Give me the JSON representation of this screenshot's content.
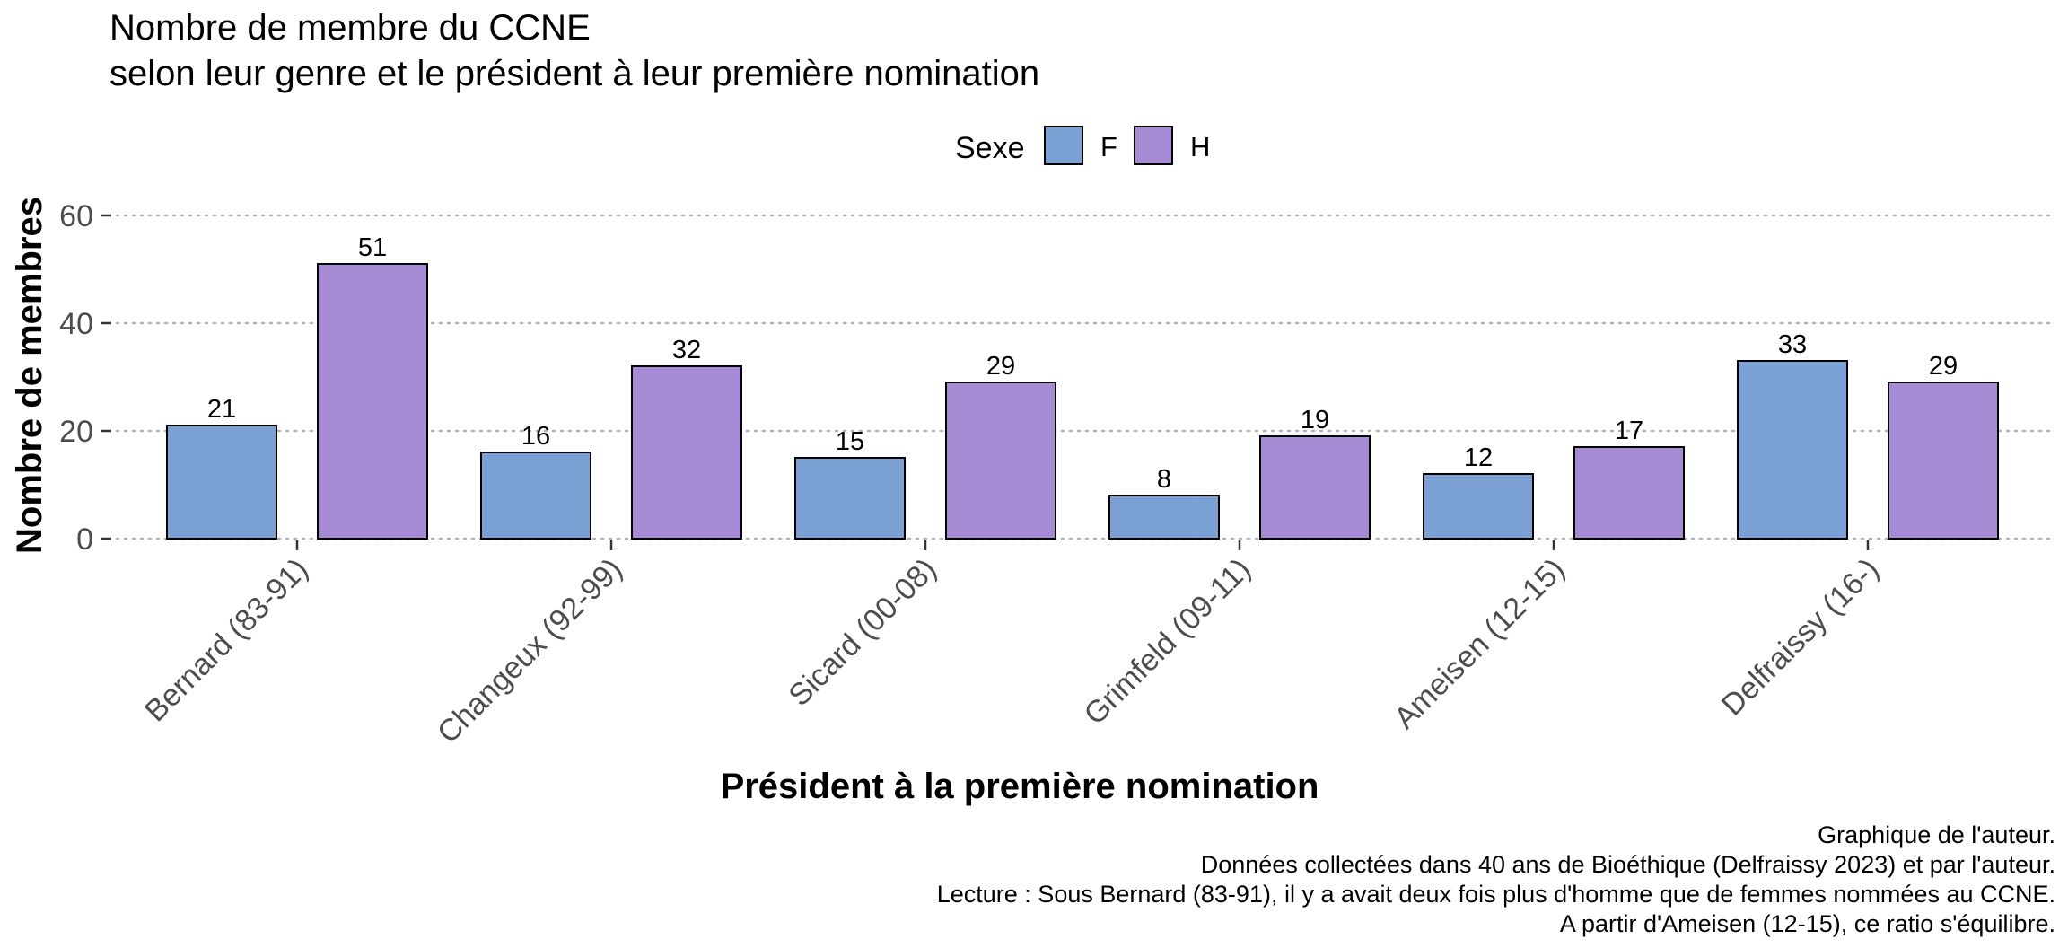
{
  "chart_data": {
    "type": "bar",
    "title": "Nombre de membre du CCNE",
    "subtitle": "selon leur genre et le président à leur première nomination",
    "xlabel": "Président à la première nomination",
    "ylabel": "Nombre de membres",
    "categories": [
      "Bernard (83-91)",
      "Changeux (92-99)",
      "Sicard (00-08)",
      "Grimfeld (09-11)",
      "Ameisen (12-15)",
      "Delfraissy (16-)"
    ],
    "series": [
      {
        "name": "F",
        "values": [
          21,
          16,
          15,
          8,
          12,
          33
        ],
        "color": "#7BA1D4"
      },
      {
        "name": "H",
        "values": [
          51,
          32,
          29,
          19,
          17,
          29
        ],
        "color": "#A68BD4"
      }
    ],
    "ylim": [
      0,
      60
    ],
    "yticks": [
      0,
      20,
      40,
      60
    ],
    "grid": "horizontal dotted",
    "legend": {
      "title": "Sexe",
      "position": "top"
    },
    "caption": [
      "Graphique de l'auteur.",
      "Données collectées dans 40 ans de Bioéthique (Delfraissy 2023) et par l'auteur.",
      "Lecture : Sous Bernard (83-91), il y a avait deux fois plus d'homme que de femmes nommées au CCNE.",
      "A partir d'Ameisen (12-15), ce ratio s'équilibre."
    ]
  }
}
